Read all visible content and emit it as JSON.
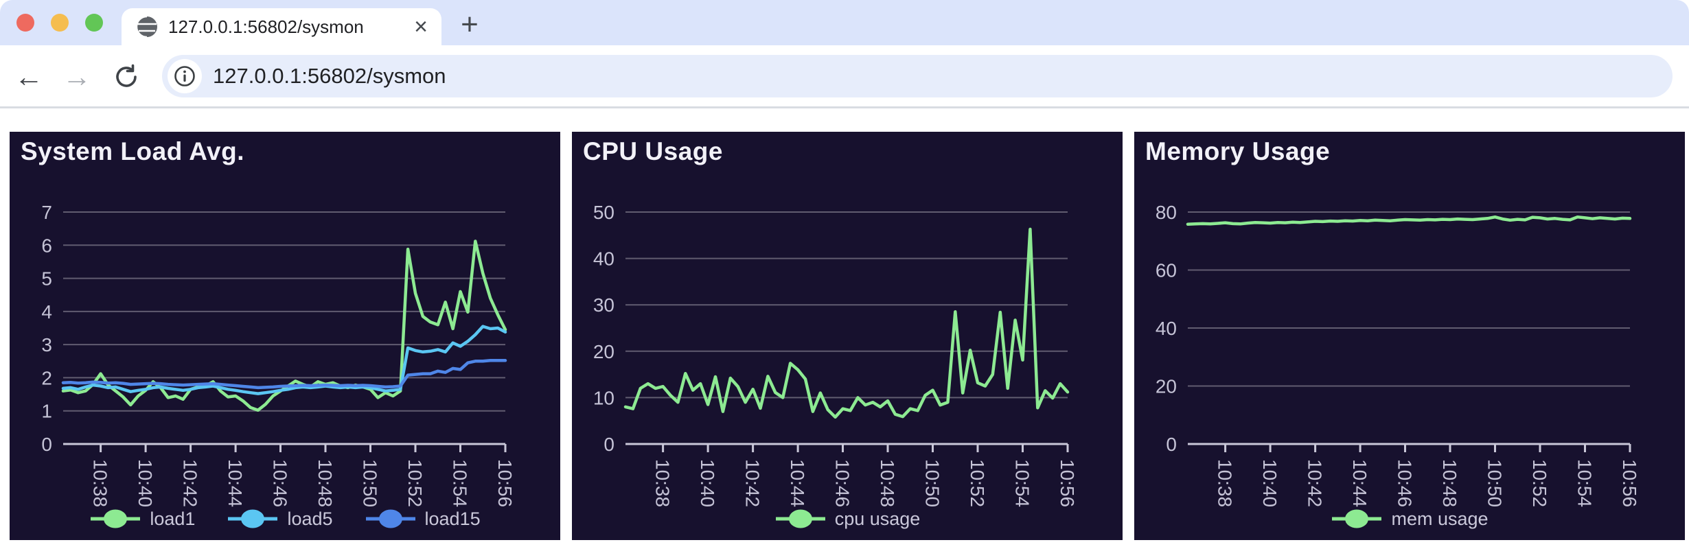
{
  "theme": {
    "panel_bg": "#17112e",
    "grid_color": "#615c70",
    "axis_color": "#c9c7d8",
    "tick_text_color": "#c5c3d6",
    "legend_text_color": "#cac8da",
    "title_text_color": "#f2f1f8",
    "accent_green": "#8dea92",
    "accent_skyblue": "#5bc6f2",
    "accent_blue": "#4f86e8",
    "tabstrip_bg": "#dbe4fb",
    "urlbar_bg": "#e7edfb",
    "traffic_red": "#ee6a5f",
    "traffic_yellow": "#f5bd4f",
    "traffic_green": "#62c656"
  },
  "browser": {
    "tab_title": "127.0.0.1:56802/sysmon",
    "tab_close_label": "×",
    "new_tab_label": "+",
    "back_label": "←",
    "forward_label": "→",
    "url": "127.0.0.1:56802/sysmon"
  },
  "chart_data": [
    {
      "type": "line",
      "title": "System Load Avg.",
      "xlabel": "",
      "ylabel": "",
      "ylim": [
        0,
        7
      ],
      "yticks": [
        0,
        1,
        2,
        3,
        4,
        5,
        6,
        7
      ],
      "grid": true,
      "legend_position": "bottom",
      "n_points": 60,
      "x_tick_labels": [
        "10:38",
        "10:40",
        "10:42",
        "10:44",
        "10:46",
        "10:48",
        "10:50",
        "10:52",
        "10:54",
        "10:56"
      ],
      "x_tick_indices": [
        5,
        11,
        17,
        23,
        29,
        35,
        41,
        47,
        53,
        59
      ],
      "series": [
        {
          "name": "load1",
          "color": "#8dea92",
          "values": [
            1.6,
            1.63,
            1.55,
            1.6,
            1.8,
            2.12,
            1.78,
            1.6,
            1.42,
            1.18,
            1.45,
            1.62,
            1.88,
            1.7,
            1.4,
            1.45,
            1.35,
            1.65,
            1.72,
            1.75,
            1.88,
            1.6,
            1.42,
            1.45,
            1.3,
            1.1,
            1.02,
            1.2,
            1.45,
            1.6,
            1.75,
            1.9,
            1.8,
            1.72,
            1.88,
            1.8,
            1.85,
            1.75,
            1.7,
            1.78,
            1.72,
            1.65,
            1.4,
            1.55,
            1.45,
            1.6,
            5.88,
            4.55,
            3.85,
            3.68,
            3.6,
            4.28,
            3.48,
            4.6,
            3.98,
            6.12,
            5.15,
            4.4,
            3.9,
            3.45
          ]
        },
        {
          "name": "load5",
          "color": "#5bc6f2",
          "values": [
            1.68,
            1.7,
            1.65,
            1.72,
            1.78,
            1.75,
            1.7,
            1.72,
            1.65,
            1.58,
            1.62,
            1.65,
            1.7,
            1.72,
            1.68,
            1.65,
            1.62,
            1.65,
            1.7,
            1.72,
            1.75,
            1.7,
            1.65,
            1.62,
            1.58,
            1.55,
            1.52,
            1.55,
            1.58,
            1.62,
            1.65,
            1.7,
            1.72,
            1.7,
            1.72,
            1.75,
            1.72,
            1.7,
            1.72,
            1.7,
            1.72,
            1.7,
            1.65,
            1.6,
            1.62,
            1.65,
            2.9,
            2.82,
            2.78,
            2.8,
            2.85,
            2.78,
            3.05,
            2.95,
            3.1,
            3.3,
            3.55,
            3.48,
            3.5,
            3.38
          ]
        },
        {
          "name": "load15",
          "color": "#4f86e8",
          "values": [
            1.85,
            1.86,
            1.84,
            1.85,
            1.87,
            1.86,
            1.84,
            1.85,
            1.83,
            1.8,
            1.81,
            1.82,
            1.83,
            1.82,
            1.8,
            1.79,
            1.78,
            1.79,
            1.8,
            1.81,
            1.82,
            1.8,
            1.78,
            1.76,
            1.74,
            1.72,
            1.7,
            1.71,
            1.72,
            1.74,
            1.75,
            1.76,
            1.77,
            1.76,
            1.77,
            1.78,
            1.77,
            1.76,
            1.77,
            1.76,
            1.77,
            1.76,
            1.74,
            1.72,
            1.73,
            1.75,
            2.08,
            2.1,
            2.12,
            2.12,
            2.2,
            2.16,
            2.28,
            2.25,
            2.45,
            2.5,
            2.5,
            2.52,
            2.52,
            2.52
          ]
        }
      ]
    },
    {
      "type": "line",
      "title": "CPU Usage",
      "xlabel": "",
      "ylabel": "",
      "ylim": [
        0,
        50
      ],
      "yticks": [
        0,
        10,
        20,
        30,
        40,
        50
      ],
      "grid": true,
      "legend_position": "bottom",
      "n_points": 60,
      "x_tick_labels": [
        "10:38",
        "10:40",
        "10:42",
        "10:44",
        "10:46",
        "10:48",
        "10:50",
        "10:52",
        "10:54",
        "10:56"
      ],
      "x_tick_indices": [
        5,
        11,
        17,
        23,
        29,
        35,
        41,
        47,
        53,
        59
      ],
      "series": [
        {
          "name": "cpu usage",
          "color": "#8dea92",
          "values": [
            8.0,
            7.6,
            12.0,
            13.0,
            12.0,
            12.4,
            10.5,
            9.0,
            15.2,
            11.6,
            13.0,
            8.5,
            14.5,
            7.0,
            14.2,
            12.4,
            9.0,
            11.8,
            7.7,
            14.6,
            11.1,
            10.0,
            17.4,
            16.0,
            14.0,
            7.0,
            11.0,
            7.4,
            5.8,
            7.6,
            7.2,
            10.0,
            8.4,
            9.0,
            8.0,
            9.3,
            6.4,
            5.9,
            7.6,
            7.2,
            10.5,
            11.6,
            8.4,
            9.0,
            28.5,
            11.0,
            20.2,
            13.2,
            12.5,
            15.0,
            28.4,
            12.0,
            26.7,
            18.1,
            46.3,
            7.8,
            11.5,
            9.9,
            13.0,
            11.2
          ]
        }
      ]
    },
    {
      "type": "line",
      "title": "Memory Usage",
      "xlabel": "",
      "ylabel": "",
      "ylim": [
        0,
        80
      ],
      "yticks": [
        0,
        20,
        40,
        60,
        80
      ],
      "grid": true,
      "legend_position": "bottom",
      "n_points": 60,
      "x_tick_labels": [
        "10:38",
        "10:40",
        "10:42",
        "10:44",
        "10:46",
        "10:48",
        "10:50",
        "10:52",
        "10:54",
        "10:56"
      ],
      "x_tick_indices": [
        5,
        11,
        17,
        23,
        29,
        35,
        41,
        47,
        53,
        59
      ],
      "series": [
        {
          "name": "mem usage",
          "color": "#8dea92",
          "values": [
            75.8,
            75.9,
            76.0,
            75.9,
            76.1,
            76.3,
            76.0,
            75.9,
            76.2,
            76.4,
            76.3,
            76.2,
            76.4,
            76.3,
            76.5,
            76.4,
            76.6,
            76.8,
            76.7,
            76.9,
            76.8,
            77.0,
            76.9,
            77.1,
            77.0,
            77.2,
            77.1,
            77.0,
            77.2,
            77.4,
            77.3,
            77.2,
            77.4,
            77.3,
            77.5,
            77.4,
            77.6,
            77.5,
            77.4,
            77.6,
            77.8,
            78.3,
            77.6,
            77.2,
            77.5,
            77.3,
            78.2,
            78.0,
            77.6,
            77.8,
            77.5,
            77.3,
            78.3,
            78.0,
            77.7,
            78.0,
            77.8,
            77.6,
            77.9,
            77.8
          ]
        }
      ]
    }
  ]
}
